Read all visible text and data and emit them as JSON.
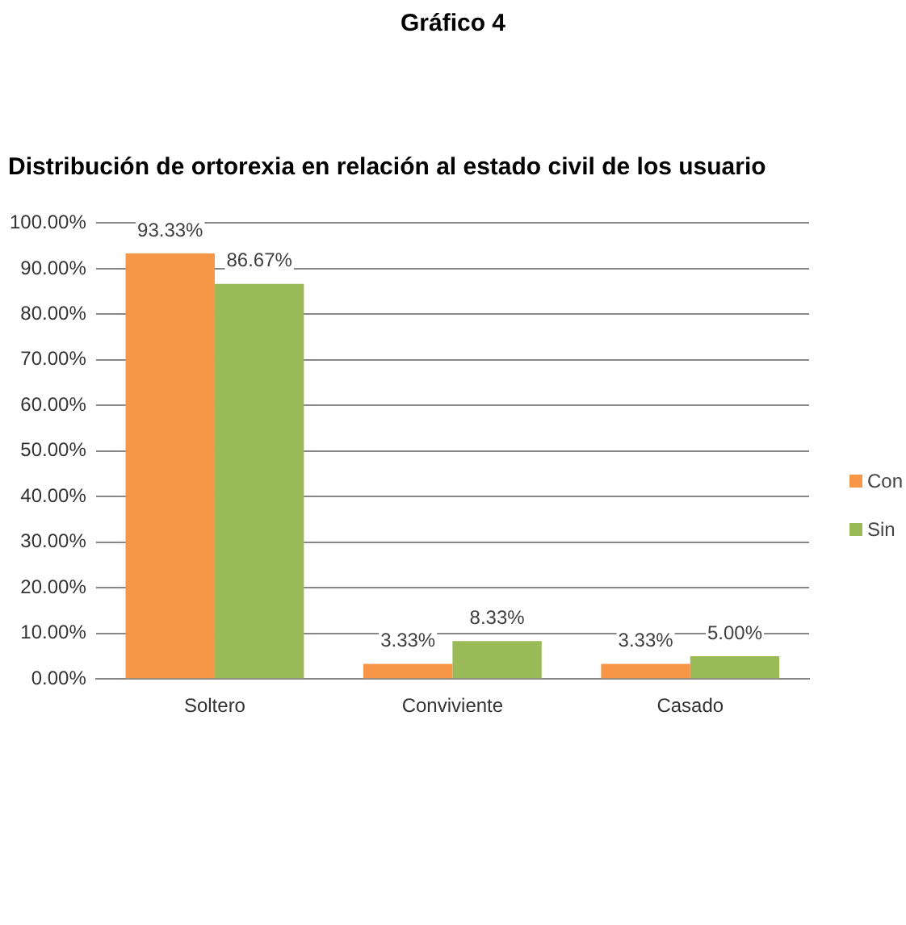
{
  "chart_data": {
    "type": "bar",
    "title": "Gráfico 4",
    "subtitle": "Distribución de ortorexia en relación al estado civil de los usuario",
    "categories": [
      "Soltero",
      "Conviviente",
      "Casado"
    ],
    "series": [
      {
        "name": "Con",
        "color": "#f79646",
        "values": [
          93.33,
          3.33,
          3.33
        ],
        "value_labels": [
          "93.33%",
          "3.33%",
          "3.33%"
        ]
      },
      {
        "name": "Sin",
        "color": "#9bbb59",
        "values": [
          86.67,
          8.33,
          5.0
        ],
        "value_labels": [
          "86.67%",
          "8.33%",
          "5.00%"
        ]
      }
    ],
    "ylim": [
      0,
      100
    ],
    "yticks": [
      {
        "value": 0,
        "label": "0.00%"
      },
      {
        "value": 10,
        "label": "10.00%"
      },
      {
        "value": 20,
        "label": "20.00%"
      },
      {
        "value": 30,
        "label": "30.00%"
      },
      {
        "value": 40,
        "label": "40.00%"
      },
      {
        "value": 50,
        "label": "50.00%"
      },
      {
        "value": 60,
        "label": "60.00%"
      },
      {
        "value": 70,
        "label": "70.00%"
      },
      {
        "value": 80,
        "label": "80.00%"
      },
      {
        "value": 90,
        "label": "90.00%"
      },
      {
        "value": 100,
        "label": "100.00%"
      }
    ],
    "grid": "y",
    "legend": "right"
  }
}
